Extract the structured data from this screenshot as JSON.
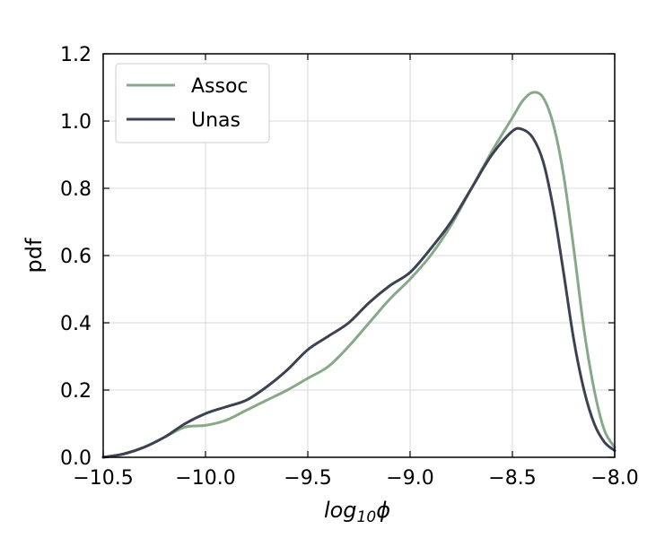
{
  "chart_data": {
    "type": "line",
    "xlabel": "log10ϕ",
    "xlabel_main": "log",
    "xlabel_sub": "10",
    "xlabel_var": "ϕ",
    "ylabel": "pdf",
    "xlim": [
      -10.5,
      -8.0
    ],
    "ylim": [
      0.0,
      1.2
    ],
    "xticks": [
      -10.5,
      -10.0,
      -9.5,
      -9.0,
      -8.5,
      -8.0
    ],
    "xtick_labels": [
      "−10.5",
      "−10.0",
      "−9.5",
      "−9.0",
      "−8.5",
      "−8.0"
    ],
    "yticks": [
      0.0,
      0.2,
      0.4,
      0.6,
      0.8,
      1.0,
      1.2
    ],
    "ytick_labels": [
      "0.0",
      "0.2",
      "0.4",
      "0.6",
      "0.8",
      "1.0",
      "1.2"
    ],
    "grid": true,
    "legend_position": "top-left",
    "series": [
      {
        "name": "Assoc",
        "color": "#86a989",
        "x": [
          -10.5,
          -10.4,
          -10.3,
          -10.2,
          -10.1,
          -10.0,
          -9.9,
          -9.8,
          -9.7,
          -9.6,
          -9.5,
          -9.4,
          -9.3,
          -9.2,
          -9.1,
          -9.0,
          -8.9,
          -8.8,
          -8.7,
          -8.6,
          -8.5,
          -8.45,
          -8.4,
          -8.35,
          -8.3,
          -8.25,
          -8.2,
          -8.15,
          -8.1,
          -8.05,
          -8.0
        ],
        "y": [
          0.0,
          0.01,
          0.03,
          0.06,
          0.09,
          0.095,
          0.11,
          0.14,
          0.17,
          0.2,
          0.235,
          0.27,
          0.33,
          0.4,
          0.47,
          0.53,
          0.6,
          0.69,
          0.8,
          0.91,
          1.01,
          1.06,
          1.085,
          1.07,
          0.99,
          0.84,
          0.62,
          0.38,
          0.2,
          0.08,
          0.03
        ]
      },
      {
        "name": "Unas",
        "color": "#3d4252",
        "x": [
          -10.5,
          -10.4,
          -10.3,
          -10.2,
          -10.1,
          -10.0,
          -9.9,
          -9.8,
          -9.7,
          -9.6,
          -9.5,
          -9.4,
          -9.3,
          -9.2,
          -9.1,
          -9.0,
          -8.9,
          -8.8,
          -8.7,
          -8.6,
          -8.5,
          -8.45,
          -8.4,
          -8.35,
          -8.3,
          -8.25,
          -8.2,
          -8.15,
          -8.1,
          -8.05,
          -8.0
        ],
        "y": [
          0.0,
          0.01,
          0.03,
          0.06,
          0.1,
          0.13,
          0.15,
          0.17,
          0.21,
          0.26,
          0.32,
          0.36,
          0.4,
          0.46,
          0.51,
          0.55,
          0.62,
          0.7,
          0.8,
          0.9,
          0.97,
          0.975,
          0.95,
          0.88,
          0.74,
          0.55,
          0.35,
          0.2,
          0.1,
          0.045,
          0.02
        ]
      }
    ]
  }
}
